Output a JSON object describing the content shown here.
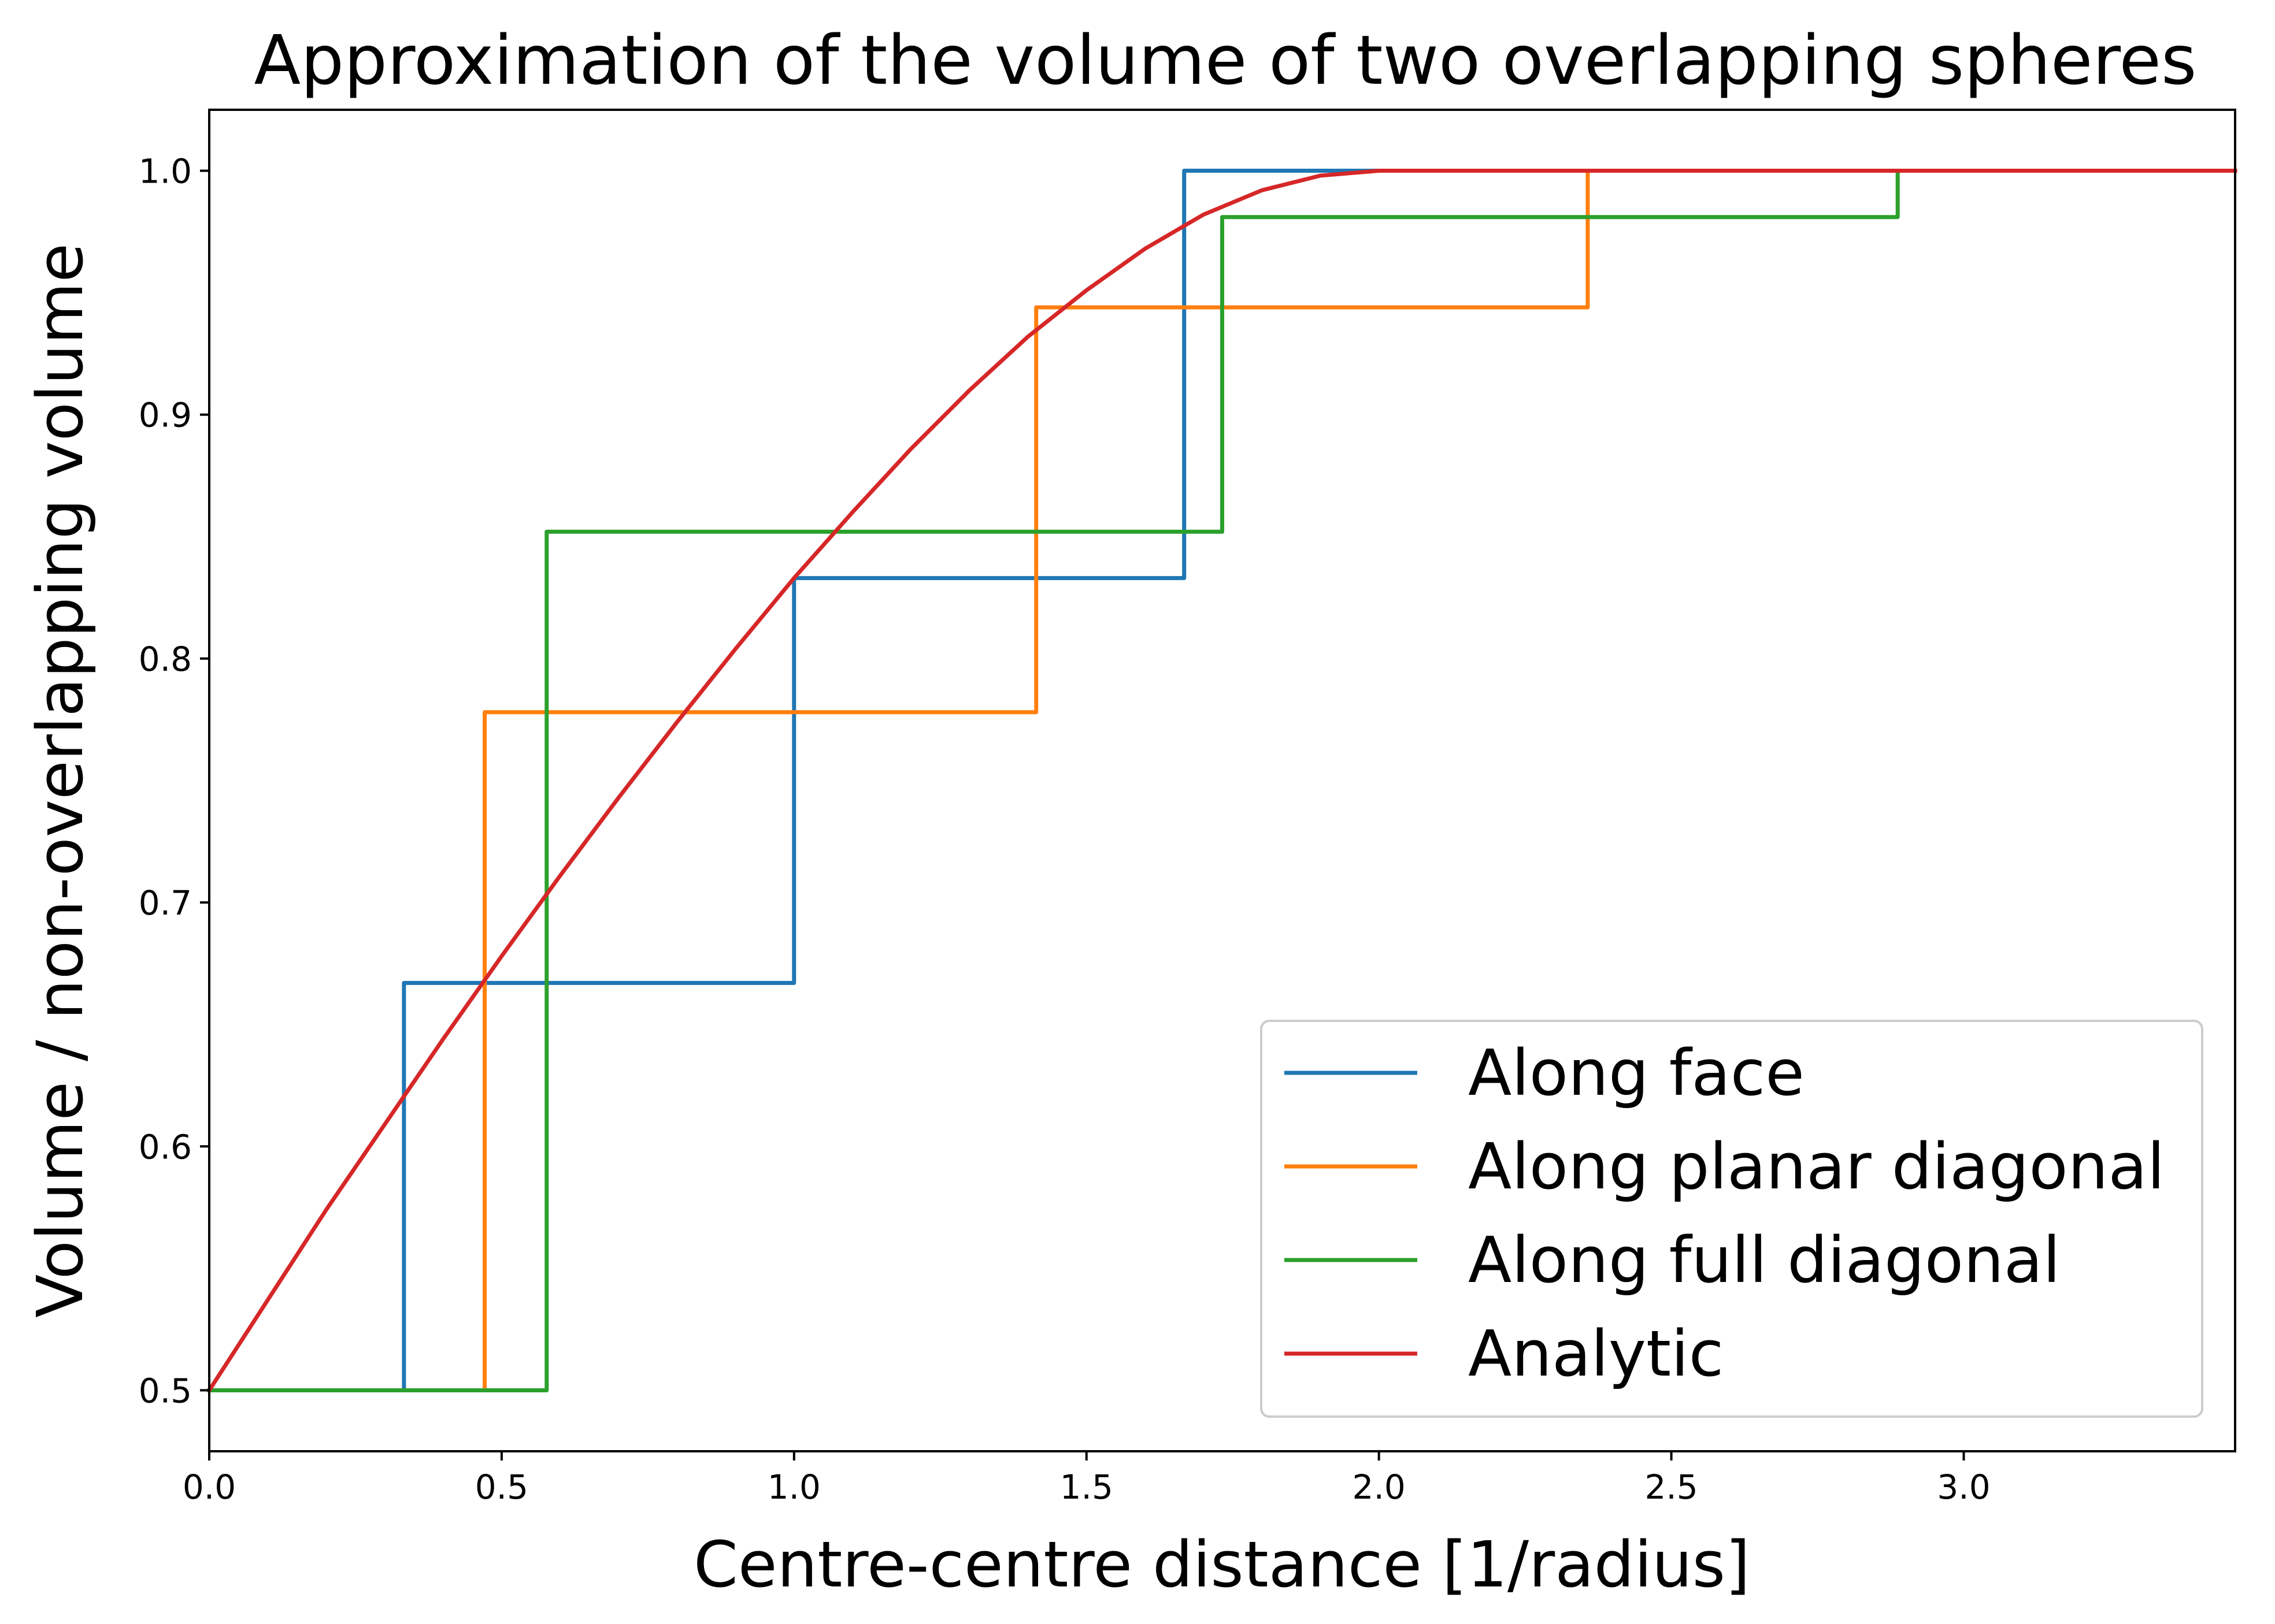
{
  "chart_data": {
    "type": "line",
    "title": "Approximation of the volume of two overlapping spheres",
    "xlabel": "Centre-centre distance [1/radius]",
    "ylabel": "Volume / non-overlapping volume",
    "xlim": [
      0.0,
      3.464
    ],
    "ylim": [
      0.475,
      1.025
    ],
    "x_ticks": [
      "0.0",
      "0.5",
      "1.0",
      "1.5",
      "2.0",
      "2.5",
      "3.0"
    ],
    "y_ticks": [
      "0.5",
      "0.6",
      "0.7",
      "0.8",
      "0.9",
      "1.0"
    ],
    "grid": false,
    "legend_position": "lower-right",
    "series": [
      {
        "name": "Along face",
        "color": "#1f77b4",
        "step": true,
        "points": [
          [
            0.0,
            0.5
          ],
          [
            0.333,
            0.5
          ],
          [
            0.333,
            0.667
          ],
          [
            1.0,
            0.667
          ],
          [
            1.0,
            0.833
          ],
          [
            1.667,
            0.833
          ],
          [
            1.667,
            1.0
          ],
          [
            3.464,
            1.0
          ]
        ]
      },
      {
        "name": "Along planar diagonal",
        "color": "#ff7f0e",
        "step": true,
        "points": [
          [
            0.0,
            0.5
          ],
          [
            0.471,
            0.5
          ],
          [
            0.471,
            0.778
          ],
          [
            1.414,
            0.778
          ],
          [
            1.414,
            0.944
          ],
          [
            2.357,
            0.944
          ],
          [
            2.357,
            1.0
          ],
          [
            3.464,
            1.0
          ]
        ]
      },
      {
        "name": "Along full diagonal",
        "color": "#2ca02c",
        "step": true,
        "points": [
          [
            0.0,
            0.5
          ],
          [
            0.577,
            0.5
          ],
          [
            0.577,
            0.852
          ],
          [
            1.732,
            0.852
          ],
          [
            1.732,
            0.981
          ],
          [
            2.887,
            0.981
          ],
          [
            2.887,
            1.0
          ],
          [
            3.464,
            1.0
          ]
        ]
      },
      {
        "name": "Analytic",
        "color": "#d62728",
        "step": false,
        "points": [
          [
            0.0,
            0.5
          ],
          [
            0.1,
            0.537
          ],
          [
            0.2,
            0.574
          ],
          [
            0.3,
            0.609
          ],
          [
            0.4,
            0.644
          ],
          [
            0.5,
            0.678
          ],
          [
            0.6,
            0.711
          ],
          [
            0.7,
            0.743
          ],
          [
            0.8,
            0.774
          ],
          [
            0.9,
            0.804
          ],
          [
            1.0,
            0.833
          ],
          [
            1.1,
            0.86
          ],
          [
            1.2,
            0.886
          ],
          [
            1.3,
            0.91
          ],
          [
            1.4,
            0.932
          ],
          [
            1.5,
            0.951
          ],
          [
            1.6,
            0.968
          ],
          [
            1.7,
            0.982
          ],
          [
            1.8,
            0.992
          ],
          [
            1.9,
            0.998
          ],
          [
            2.0,
            1.0
          ],
          [
            3.464,
            1.0
          ]
        ]
      }
    ]
  }
}
